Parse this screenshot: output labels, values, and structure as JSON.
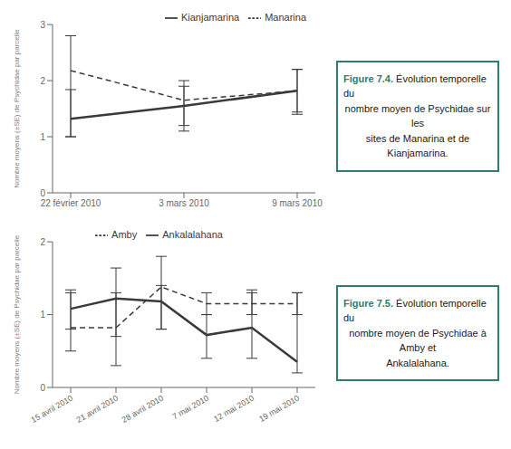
{
  "chart_data": [
    {
      "type": "line",
      "title": "Figure 7.4.",
      "annotations": [
        "Évolution temporelle du",
        "nombre moyen de Psychidae sur les",
        "sites de Manarina et de Kianjamarina."
      ],
      "ylabel": "Nombre moyens (±SE) de Psychidae par parcelle",
      "categories": [
        "22 février 2010",
        "3 mars 2010",
        "9 mars 2010"
      ],
      "series": [
        {
          "name": "Manarina",
          "color": "#3a3a3a",
          "line_style": "dashed",
          "values": [
            2.18,
            1.65,
            1.82
          ],
          "error_low": [
            1.18,
            0.45,
            0.38
          ],
          "error_high": [
            0.62,
            0.25,
            0.38
          ]
        },
        {
          "name": "Kianjamarina",
          "color": "#3a3a3a",
          "line_style": "solid",
          "values": [
            1.32,
            1.55,
            1.82
          ],
          "error_low": [
            0.32,
            0.45,
            0.42
          ],
          "error_high": [
            0.52,
            0.45,
            0.38
          ]
        }
      ],
      "ylim": [
        0,
        3
      ],
      "yticks": [
        0,
        1,
        2,
        3
      ],
      "grid": false,
      "legend": "upper right"
    },
    {
      "type": "line",
      "title": "Figure 7.5.",
      "annotations": [
        "Évolution temporelle du",
        "nombre moyen de Psychidae à Amby et",
        "Ankalalahana."
      ],
      "ylabel": "Nombre moyens (±SE) de Psychidae par parcelle",
      "categories": [
        "15 avril 2010",
        "21 avril 2010",
        "28 avril 2010",
        "7 mai 2010",
        "12 mai 2010",
        "19 mai 2010"
      ],
      "series": [
        {
          "name": "Amby",
          "color": "#3a3a3a",
          "line_style": "dashed",
          "values": [
            0.82,
            0.82,
            1.38,
            1.15,
            1.15,
            1.15
          ],
          "error_low": [
            0.32,
            0.52,
            0.58,
            0.15,
            0.15,
            0.15
          ],
          "error_high": [
            0.52,
            0.82,
            0.42,
            0.15,
            0.15,
            0.15
          ]
        },
        {
          "name": "Ankalalahana",
          "color": "#3a3a3a",
          "line_style": "solid",
          "values": [
            1.08,
            1.22,
            1.18,
            0.72,
            0.82,
            0.35
          ],
          "error_low": [
            0.28,
            0.52,
            0.38,
            0.32,
            0.42,
            0.15
          ],
          "error_high": [
            0.22,
            0.08,
            0.22,
            0.28,
            0.52,
            0.95
          ]
        }
      ],
      "ylim": [
        0,
        2
      ],
      "yticks": [
        0,
        1,
        2
      ],
      "grid": false,
      "legend": "upper center"
    }
  ]
}
